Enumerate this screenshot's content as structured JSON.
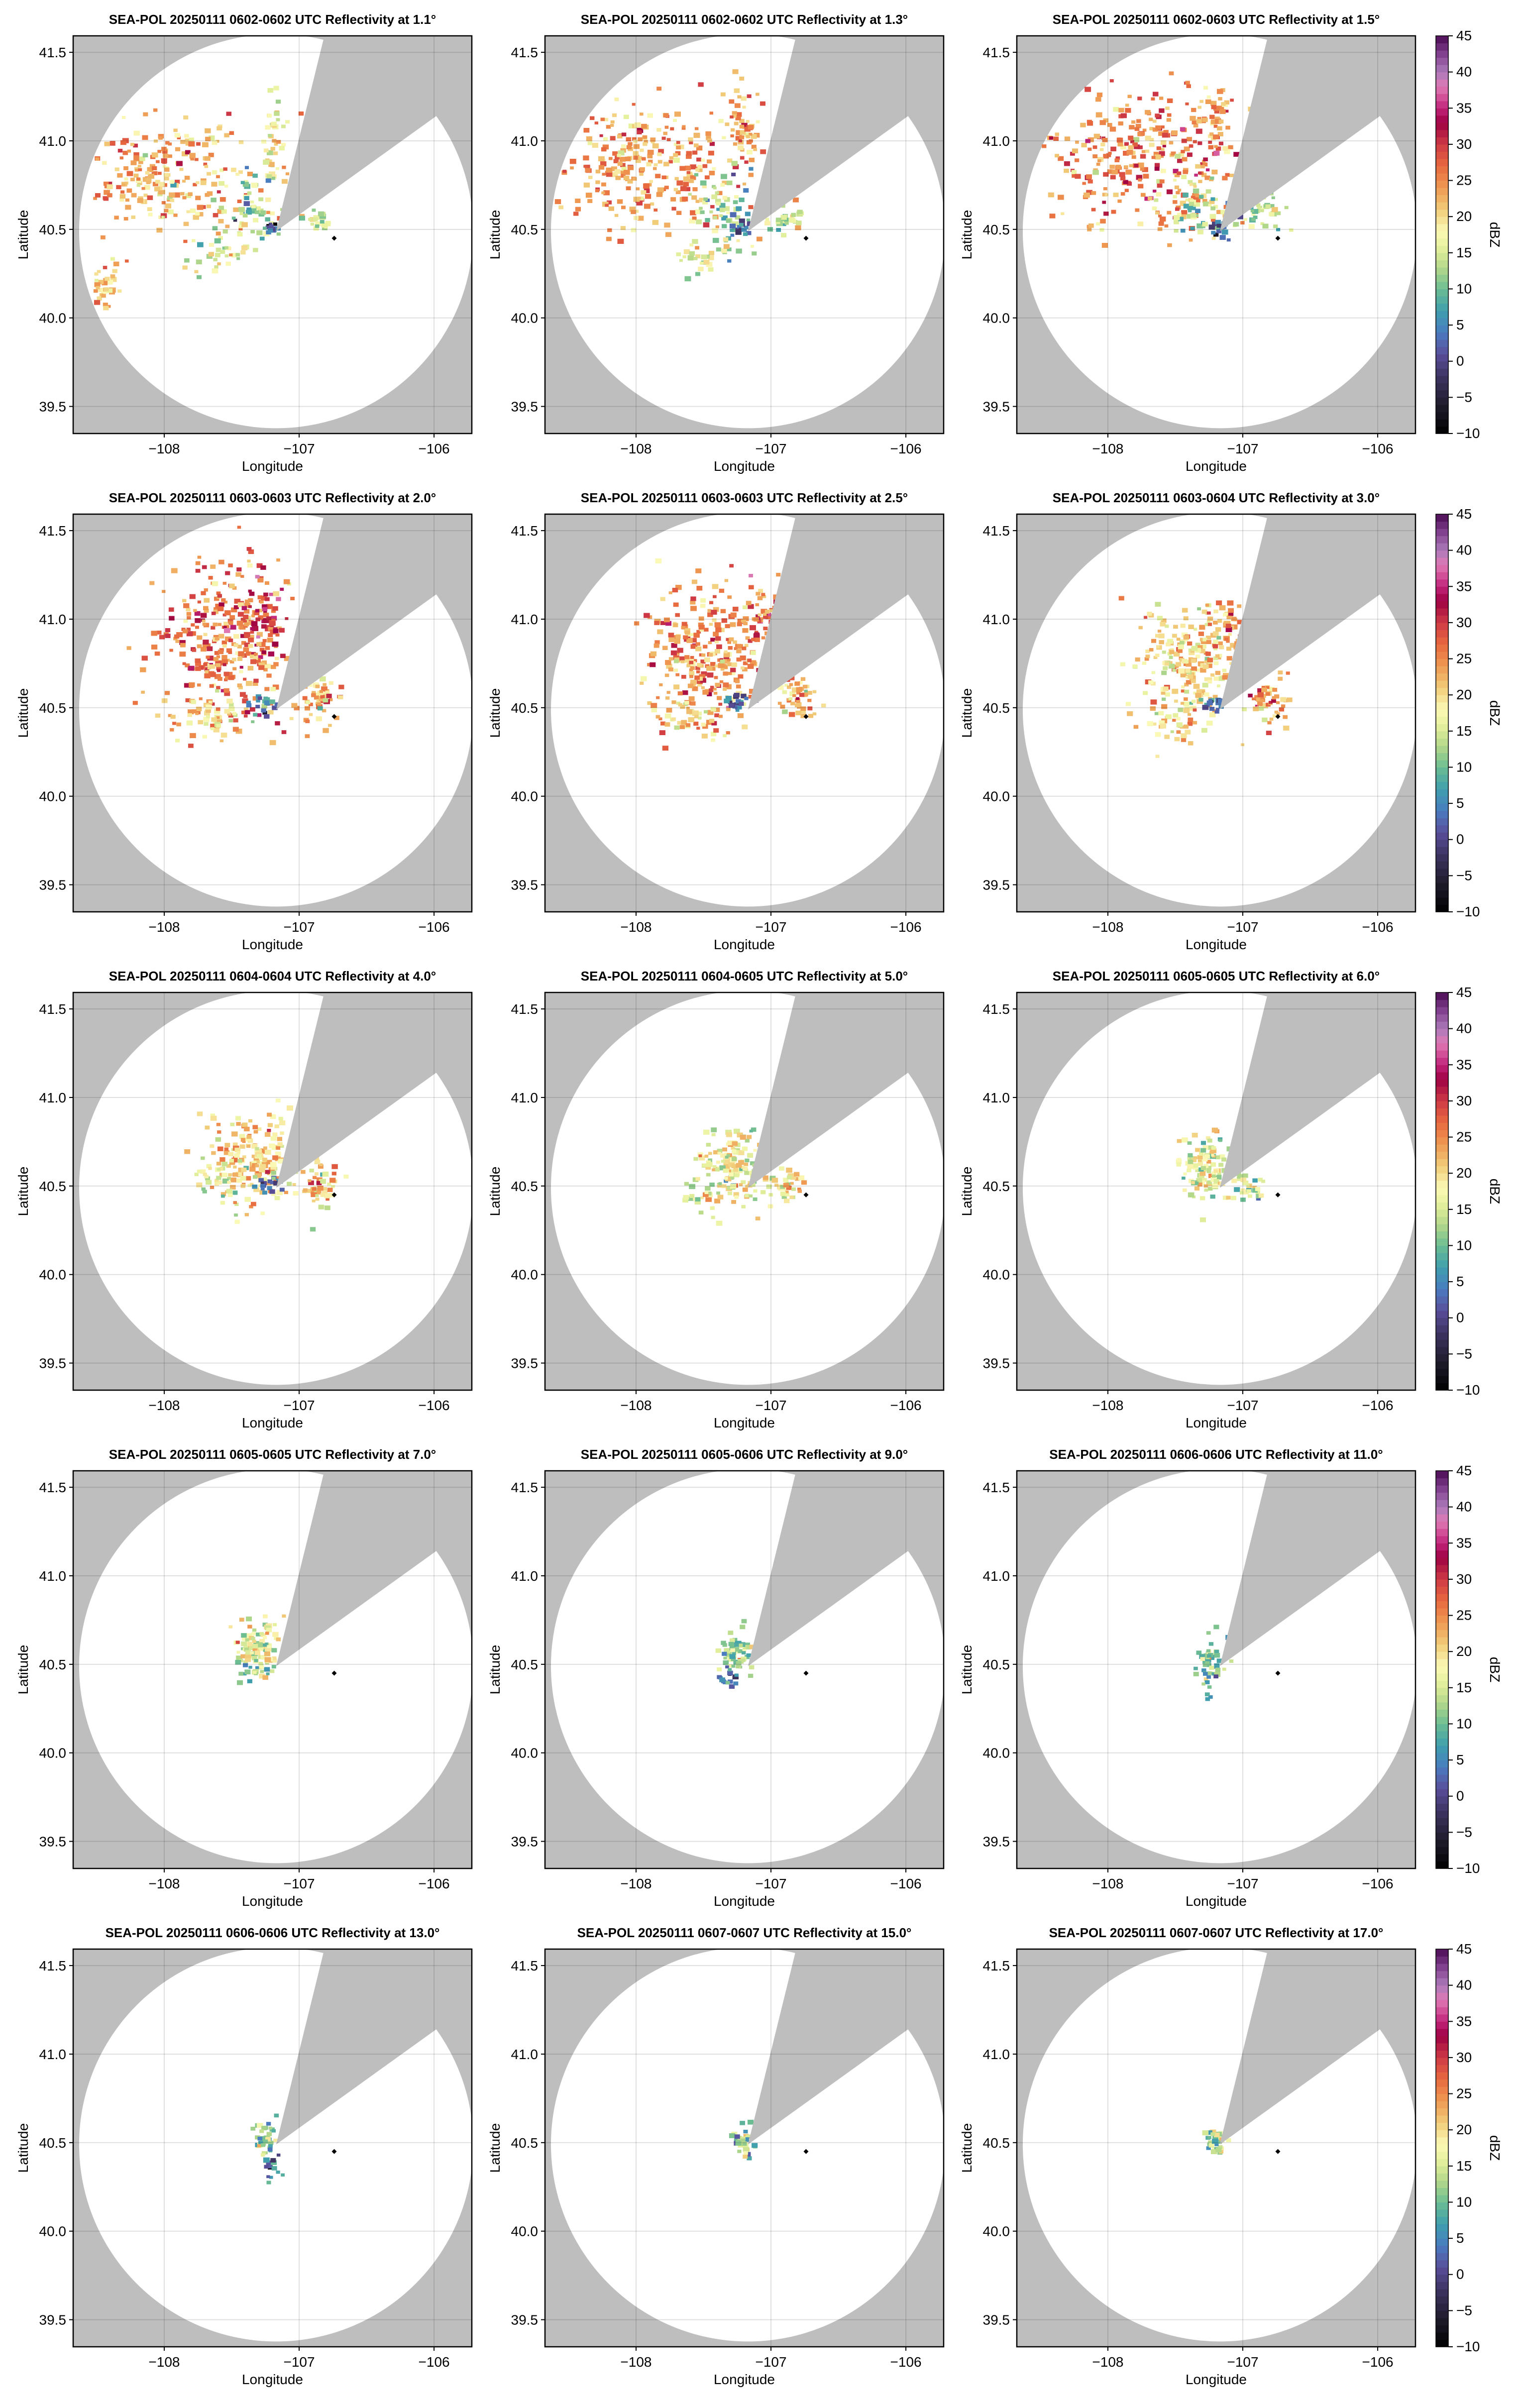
{
  "chart_data": {
    "type": "heatmap",
    "figure": "SEA-POL PPI reflectivity sweeps",
    "xlabel": "Longitude",
    "ylabel": "Latitude",
    "xlim": [
      -108.675,
      -105.72
    ],
    "ylim": [
      39.347,
      41.593
    ],
    "xticks": [
      -108,
      -107,
      -106
    ],
    "xtick_labels": [
      "−108",
      "−107",
      "−106"
    ],
    "yticks": [
      39.5,
      40.0,
      40.5,
      41.0,
      41.5
    ],
    "ytick_labels": [
      "39.5",
      "40.0",
      "40.5",
      "41.0",
      "41.5"
    ],
    "grid": true,
    "radar_center": [
      -107.17,
      40.49
    ],
    "marker_point": [
      -106.74,
      40.45
    ],
    "colorbar": {
      "label": "dBZ",
      "range": [
        -10,
        45
      ],
      "ticks": [
        45,
        40,
        35,
        30,
        25,
        20,
        15,
        10,
        5,
        0,
        -5,
        -10
      ],
      "tick_labels": [
        "45",
        "40",
        "35",
        "30",
        "25",
        "20",
        "15",
        "10",
        "5",
        "0",
        "−5",
        "−10"
      ],
      "placement": "right of each row"
    },
    "panels": [
      {
        "title": "SEA-POL 20250111 0602-0602 UTC Reflectivity at 1.1°",
        "elevation": 1.1,
        "echo_regions": [
          [
            -108.0,
            40.8,
            0.35,
            0.15,
            23,
            260
          ],
          [
            -108.45,
            40.18,
            0.08,
            0.07,
            20,
            40
          ],
          [
            -107.2,
            41.0,
            0.04,
            0.15,
            19,
            40
          ],
          [
            -107.35,
            40.6,
            0.12,
            0.1,
            12,
            60
          ],
          [
            -107.2,
            40.5,
            0.04,
            0.02,
            2,
            15
          ],
          [
            -106.85,
            40.55,
            0.08,
            0.03,
            14,
            25
          ],
          [
            -107.6,
            40.35,
            0.1,
            0.06,
            16,
            30
          ]
        ]
      },
      {
        "title": "SEA-POL 20250111 0602-0602 UTC Reflectivity at 1.3°",
        "elevation": 1.3,
        "echo_regions": [
          [
            -107.9,
            40.85,
            0.35,
            0.18,
            24,
            300
          ],
          [
            -107.2,
            41.05,
            0.06,
            0.15,
            22,
            50
          ],
          [
            -107.35,
            40.6,
            0.12,
            0.1,
            12,
            60
          ],
          [
            -107.2,
            40.5,
            0.04,
            0.02,
            2,
            15
          ],
          [
            -106.9,
            40.55,
            0.1,
            0.04,
            13,
            30
          ],
          [
            -107.5,
            40.35,
            0.1,
            0.05,
            16,
            30
          ]
        ]
      },
      {
        "title": "SEA-POL 20250111 0602-0603 UTC Reflectivity at 1.5°",
        "elevation": 1.5,
        "echo_regions": [
          [
            -107.75,
            40.9,
            0.35,
            0.2,
            25,
            320
          ],
          [
            -107.2,
            41.1,
            0.08,
            0.12,
            24,
            50
          ],
          [
            -107.3,
            40.6,
            0.12,
            0.1,
            13,
            60
          ],
          [
            -106.85,
            40.6,
            0.1,
            0.06,
            14,
            40
          ],
          [
            -107.2,
            40.5,
            0.04,
            0.02,
            2,
            15
          ]
        ]
      },
      {
        "title": "SEA-POL 20250111 0603-0603 UTC Reflectivity at 2.0°",
        "elevation": 2.0,
        "echo_regions": [
          [
            -107.55,
            40.85,
            0.25,
            0.22,
            26,
            320
          ],
          [
            -107.25,
            41.0,
            0.1,
            0.12,
            30,
            60
          ],
          [
            -106.85,
            40.58,
            0.08,
            0.08,
            22,
            60
          ],
          [
            -107.65,
            40.45,
            0.15,
            0.05,
            20,
            50
          ],
          [
            -107.25,
            40.52,
            0.05,
            0.03,
            3,
            20
          ]
        ]
      },
      {
        "title": "SEA-POL 20250111 0603-0603 UTC Reflectivity at 2.5°",
        "elevation": 2.5,
        "echo_regions": [
          [
            -107.5,
            40.8,
            0.22,
            0.2,
            24,
            280
          ],
          [
            -107.1,
            41.0,
            0.08,
            0.1,
            28,
            50
          ],
          [
            -106.8,
            40.55,
            0.07,
            0.07,
            22,
            50
          ],
          [
            -107.6,
            40.45,
            0.12,
            0.05,
            20,
            40
          ],
          [
            -107.25,
            40.52,
            0.05,
            0.03,
            3,
            20
          ]
        ]
      },
      {
        "title": "SEA-POL 20250111 0603-0604 UTC Reflectivity at 3.0°",
        "elevation": 3.0,
        "echo_regions": [
          [
            -107.4,
            40.75,
            0.2,
            0.17,
            20,
            240
          ],
          [
            -107.1,
            40.95,
            0.07,
            0.1,
            24,
            40
          ],
          [
            -106.8,
            40.55,
            0.07,
            0.07,
            24,
            50
          ],
          [
            -107.5,
            40.4,
            0.1,
            0.05,
            18,
            30
          ],
          [
            -107.22,
            40.52,
            0.05,
            0.03,
            3,
            20
          ]
        ]
      },
      {
        "title": "SEA-POL 20250111 0604-0604 UTC Reflectivity at 4.0°",
        "elevation": 4.0,
        "echo_regions": [
          [
            -107.35,
            40.65,
            0.15,
            0.13,
            20,
            200
          ],
          [
            -106.85,
            40.5,
            0.07,
            0.07,
            20,
            50
          ],
          [
            -107.6,
            40.52,
            0.08,
            0.04,
            16,
            30
          ],
          [
            -107.22,
            40.5,
            0.05,
            0.03,
            4,
            20
          ]
        ]
      },
      {
        "title": "SEA-POL 20250111 0604-0605 UTC Reflectivity at 5.0°",
        "elevation": 5.0,
        "echo_regions": [
          [
            -107.3,
            40.6,
            0.12,
            0.1,
            17,
            150
          ],
          [
            -106.9,
            40.5,
            0.08,
            0.05,
            18,
            40
          ],
          [
            -107.5,
            40.45,
            0.07,
            0.05,
            15,
            20
          ]
        ]
      },
      {
        "title": "SEA-POL 20250111 0605-0605 UTC Reflectivity at 6.0°",
        "elevation": 6.0,
        "echo_regions": [
          [
            -107.3,
            40.6,
            0.1,
            0.09,
            16,
            110
          ],
          [
            -106.95,
            40.5,
            0.06,
            0.05,
            16,
            30
          ]
        ]
      },
      {
        "title": "SEA-POL 20250111 0605-0605 UTC Reflectivity at 7.0°",
        "elevation": 7.0,
        "echo_regions": [
          [
            -107.3,
            40.6,
            0.08,
            0.08,
            17,
            100
          ],
          [
            -107.35,
            40.47,
            0.1,
            0.03,
            10,
            20
          ]
        ]
      },
      {
        "title": "SEA-POL 20250111 0605-0606 UTC Reflectivity at 9.0°",
        "elevation": 9.0,
        "echo_regions": [
          [
            -107.25,
            40.55,
            0.06,
            0.06,
            12,
            60
          ],
          [
            -107.3,
            40.42,
            0.05,
            0.04,
            5,
            15
          ]
        ]
      },
      {
        "title": "SEA-POL 20250111 0606-0606 UTC Reflectivity at 11.0°",
        "elevation": 11.0,
        "echo_regions": [
          [
            -107.25,
            40.52,
            0.05,
            0.06,
            12,
            50
          ],
          [
            -107.25,
            40.4,
            0.03,
            0.04,
            5,
            10
          ]
        ]
      },
      {
        "title": "SEA-POL 20250111 0606-0606 UTC Reflectivity at 13.0°",
        "elevation": 13.0,
        "echo_regions": [
          [
            -107.25,
            40.52,
            0.04,
            0.05,
            12,
            40
          ],
          [
            -107.2,
            40.35,
            0.04,
            0.05,
            4,
            15
          ]
        ]
      },
      {
        "title": "SEA-POL 20250111 0607-0607 UTC Reflectivity at 15.0°",
        "elevation": 15.0,
        "echo_regions": [
          [
            -107.2,
            40.5,
            0.04,
            0.04,
            12,
            35
          ]
        ]
      },
      {
        "title": "SEA-POL 20250111 0607-0607 UTC Reflectivity at 17.0°",
        "elevation": 17.0,
        "echo_regions": [
          [
            -107.2,
            40.5,
            0.04,
            0.04,
            14,
            35
          ]
        ]
      }
    ],
    "colors": {
      "background": "#bebebe",
      "coverage": "#ffffff",
      "grid": "#a8a8a8"
    }
  }
}
